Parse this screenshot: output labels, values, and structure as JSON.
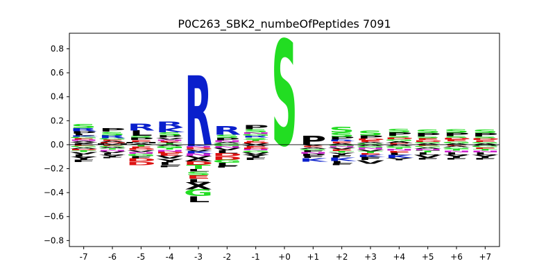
{
  "chart_data": {
    "type": "sequence-logo",
    "title": "P0C263_SBK2_numbeOfPeptides 7091",
    "xlabel": "",
    "ylabel": "",
    "ylim": [
      -0.85,
      0.93
    ],
    "yticks": [
      -0.8,
      -0.6,
      -0.4,
      -0.2,
      0.0,
      0.2,
      0.4,
      0.6,
      0.8
    ],
    "ytick_labels": [
      "−0.8",
      "−0.6",
      "−0.4",
      "−0.2",
      "0.0",
      "0.2",
      "0.4",
      "0.6",
      "0.8"
    ],
    "positions": [
      "-7",
      "-6",
      "-5",
      "-4",
      "-3",
      "-2",
      "-1",
      "+0",
      "+1",
      "+2",
      "+3",
      "+4",
      "+5",
      "+6",
      "+7"
    ],
    "grid": false,
    "colors": {
      "S": "#22dd22",
      "G": "#22dd22",
      "T": "#22dd22",
      "R": "#0a1fcc",
      "K": "#0a1fcc",
      "H": "#0a1fcc",
      "D": "#dd1111",
      "E": "#dd1111",
      "N": "#cc22cc",
      "Q": "#cc22cc",
      "P": "#000000",
      "L": "#000000",
      "V": "#000000",
      "I": "#000000",
      "M": "#000000",
      "A": "#000000",
      "F": "#000000",
      "W": "#000000",
      "Y": "#000000",
      "C": "#000000",
      "X": "#000000"
    },
    "stacks": [
      {
        "pos": "-7",
        "up": [
          [
            "F",
            0.01
          ],
          [
            "V",
            0.01
          ],
          [
            "A",
            0.012
          ],
          [
            "N",
            0.01
          ],
          [
            "E",
            0.012
          ],
          [
            "G",
            0.012
          ],
          [
            "K",
            0.012
          ],
          [
            "L",
            0.015
          ],
          [
            "P",
            0.02
          ],
          [
            "R",
            0.025
          ],
          [
            "S",
            0.035
          ]
        ],
        "down": [
          [
            "E",
            0.01
          ],
          [
            "G",
            0.012
          ],
          [
            "A",
            0.012
          ],
          [
            "D",
            0.012
          ],
          [
            "T",
            0.015
          ],
          [
            "V",
            0.02
          ],
          [
            "L",
            0.02
          ],
          [
            "Y",
            0.025
          ],
          [
            "F",
            0.02
          ]
        ]
      },
      {
        "pos": "-6",
        "up": [
          [
            "M",
            0.01
          ],
          [
            "D",
            0.01
          ],
          [
            "A",
            0.01
          ],
          [
            "E",
            0.012
          ],
          [
            "G",
            0.012
          ],
          [
            "R",
            0.025
          ],
          [
            "S",
            0.03
          ],
          [
            "P",
            0.03
          ]
        ],
        "down": [
          [
            "E",
            0.01
          ],
          [
            "G",
            0.01
          ],
          [
            "A",
            0.01
          ],
          [
            "T",
            0.012
          ],
          [
            "N",
            0.012
          ],
          [
            "V",
            0.015
          ],
          [
            "L",
            0.015
          ],
          [
            "Y",
            0.02
          ],
          [
            "F",
            0.01
          ]
        ]
      },
      {
        "pos": "-5",
        "up": [
          [
            "A",
            0.012
          ],
          [
            "M",
            0.012
          ],
          [
            "E",
            0.015
          ],
          [
            "P",
            0.02
          ],
          [
            "S",
            0.015
          ],
          [
            "L",
            0.045
          ],
          [
            "R",
            0.055
          ]
        ],
        "down": [
          [
            "T",
            0.015
          ],
          [
            "E",
            0.015
          ],
          [
            "D",
            0.015
          ],
          [
            "V",
            0.015
          ],
          [
            "N",
            0.015
          ],
          [
            "G",
            0.02
          ],
          [
            "F",
            0.02
          ],
          [
            "D",
            0.025
          ],
          [
            "D",
            0.03
          ]
        ]
      },
      {
        "pos": "-4",
        "up": [
          [
            "T",
            0.01
          ],
          [
            "Y",
            0.01
          ],
          [
            "E",
            0.012
          ],
          [
            "N",
            0.012
          ],
          [
            "V",
            0.015
          ],
          [
            "P",
            0.02
          ],
          [
            "S",
            0.025
          ],
          [
            "K",
            0.04
          ],
          [
            "R",
            0.05
          ]
        ],
        "down": [
          [
            "A",
            0.012
          ],
          [
            "G",
            0.015
          ],
          [
            "T",
            0.015
          ],
          [
            "N",
            0.015
          ],
          [
            "D",
            0.015
          ],
          [
            "E",
            0.02
          ],
          [
            "V",
            0.025
          ],
          [
            "Y",
            0.03
          ],
          [
            "L",
            0.025
          ],
          [
            "F",
            0.015
          ]
        ]
      },
      {
        "pos": "-3",
        "up": [
          [
            "R",
            0.58
          ]
        ],
        "down": [
          [
            "K",
            0.012
          ],
          [
            "N",
            0.012
          ],
          [
            "D",
            0.015
          ],
          [
            "V",
            0.015
          ],
          [
            "K",
            0.02
          ],
          [
            "N",
            0.02
          ],
          [
            "V",
            0.02
          ],
          [
            "A",
            0.025
          ],
          [
            "D",
            0.03
          ],
          [
            "T",
            0.035
          ],
          [
            "L",
            0.02
          ],
          [
            "S",
            0.03
          ],
          [
            "E",
            0.03
          ],
          [
            "L",
            0.03
          ],
          [
            "X",
            0.06
          ],
          [
            "G",
            0.055
          ],
          [
            "L",
            0.05
          ]
        ]
      },
      {
        "pos": "-2",
        "up": [
          [
            "G",
            0.01
          ],
          [
            "A",
            0.012
          ],
          [
            "N",
            0.015
          ],
          [
            "P",
            0.02
          ],
          [
            "S",
            0.025
          ],
          [
            "R",
            0.07
          ]
        ],
        "down": [
          [
            "G",
            0.012
          ],
          [
            "N",
            0.015
          ],
          [
            "V",
            0.02
          ],
          [
            "L",
            0.025
          ],
          [
            "D",
            0.025
          ],
          [
            "D",
            0.03
          ],
          [
            "G",
            0.025
          ],
          [
            "L",
            0.025
          ],
          [
            "F",
            0.015
          ]
        ]
      },
      {
        "pos": "-1",
        "up": [
          [
            "V",
            0.01
          ],
          [
            "D",
            0.01
          ],
          [
            "E",
            0.012
          ],
          [
            "T",
            0.012
          ],
          [
            "S",
            0.015
          ],
          [
            "R",
            0.015
          ],
          [
            "G",
            0.015
          ],
          [
            "N",
            0.015
          ],
          [
            "S",
            0.025
          ],
          [
            "P",
            0.035
          ]
        ],
        "down": [
          [
            "A",
            0.012
          ],
          [
            "E",
            0.012
          ],
          [
            "D",
            0.012
          ],
          [
            "N",
            0.012
          ],
          [
            "G",
            0.015
          ],
          [
            "V",
            0.02
          ],
          [
            "Y",
            0.025
          ],
          [
            "F",
            0.02
          ]
        ]
      },
      {
        "pos": "+0",
        "up": [
          [
            "S",
            0.88
          ]
        ],
        "down": []
      },
      {
        "pos": "+1",
        "up": [
          [
            "P",
            0.075
          ]
        ],
        "down": [
          [
            "V",
            0.01
          ],
          [
            "E",
            0.012
          ],
          [
            "A",
            0.012
          ],
          [
            "G",
            0.012
          ],
          [
            "F",
            0.015
          ],
          [
            "N",
            0.015
          ],
          [
            "P",
            0.02
          ],
          [
            "F",
            0.015
          ],
          [
            "K",
            0.03
          ]
        ]
      },
      {
        "pos": "+2",
        "up": [
          [
            "A",
            0.012
          ],
          [
            "E",
            0.015
          ],
          [
            "R",
            0.015
          ],
          [
            "P",
            0.025
          ],
          [
            "S",
            0.035
          ],
          [
            "S",
            0.05
          ]
        ],
        "down": [
          [
            "G",
            0.01
          ],
          [
            "N",
            0.012
          ],
          [
            "V",
            0.015
          ],
          [
            "E",
            0.015
          ],
          [
            "T",
            0.015
          ],
          [
            "Y",
            0.02
          ],
          [
            "F",
            0.02
          ],
          [
            "K",
            0.03
          ],
          [
            "L",
            0.02
          ],
          [
            "F",
            0.015
          ]
        ]
      },
      {
        "pos": "+3",
        "up": [
          [
            "G",
            0.01
          ],
          [
            "A",
            0.012
          ],
          [
            "E",
            0.015
          ],
          [
            "D",
            0.015
          ],
          [
            "P",
            0.025
          ],
          [
            "S",
            0.04
          ]
        ],
        "down": [
          [
            "A",
            0.012
          ],
          [
            "G",
            0.012
          ],
          [
            "N",
            0.015
          ],
          [
            "V",
            0.015
          ],
          [
            "T",
            0.015
          ],
          [
            "E",
            0.015
          ],
          [
            "K",
            0.02
          ],
          [
            "F",
            0.025
          ],
          [
            "V",
            0.03
          ]
        ]
      },
      {
        "pos": "+4",
        "up": [
          [
            "E",
            0.015
          ],
          [
            "A",
            0.015
          ],
          [
            "G",
            0.015
          ],
          [
            "D",
            0.015
          ],
          [
            "S",
            0.015
          ],
          [
            "P",
            0.03
          ],
          [
            "S",
            0.03
          ]
        ],
        "down": [
          [
            "A",
            0.012
          ],
          [
            "G",
            0.012
          ],
          [
            "T",
            0.012
          ],
          [
            "N",
            0.015
          ],
          [
            "E",
            0.015
          ],
          [
            "L",
            0.02
          ],
          [
            "K",
            0.025
          ],
          [
            "Y",
            0.02
          ]
        ]
      },
      {
        "pos": "+5",
        "up": [
          [
            "A",
            0.012
          ],
          [
            "G",
            0.012
          ],
          [
            "D",
            0.015
          ],
          [
            "E",
            0.015
          ],
          [
            "S",
            0.015
          ],
          [
            "P",
            0.03
          ],
          [
            "S",
            0.03
          ]
        ],
        "down": [
          [
            "E",
            0.01
          ],
          [
            "G",
            0.012
          ],
          [
            "A",
            0.012
          ],
          [
            "N",
            0.015
          ],
          [
            "T",
            0.015
          ],
          [
            "L",
            0.02
          ],
          [
            "V",
            0.025
          ],
          [
            "F",
            0.015
          ]
        ]
      },
      {
        "pos": "+6",
        "up": [
          [
            "A",
            0.012
          ],
          [
            "G",
            0.015
          ],
          [
            "E",
            0.015
          ],
          [
            "D",
            0.015
          ],
          [
            "S",
            0.015
          ],
          [
            "P",
            0.03
          ],
          [
            "S",
            0.03
          ]
        ],
        "down": [
          [
            "E",
            0.01
          ],
          [
            "A",
            0.012
          ],
          [
            "G",
            0.012
          ],
          [
            "T",
            0.015
          ],
          [
            "N",
            0.015
          ],
          [
            "L",
            0.02
          ],
          [
            "Y",
            0.025
          ],
          [
            "F",
            0.015
          ]
        ]
      },
      {
        "pos": "+7",
        "up": [
          [
            "A",
            0.012
          ],
          [
            "G",
            0.012
          ],
          [
            "E",
            0.015
          ],
          [
            "D",
            0.015
          ],
          [
            "S",
            0.015
          ],
          [
            "P",
            0.03
          ],
          [
            "S",
            0.03
          ]
        ],
        "down": [
          [
            "A",
            0.01
          ],
          [
            "G",
            0.012
          ],
          [
            "E",
            0.012
          ],
          [
            "T",
            0.015
          ],
          [
            "N",
            0.015
          ],
          [
            "L",
            0.02
          ],
          [
            "Y",
            0.025
          ],
          [
            "F",
            0.015
          ]
        ]
      }
    ]
  }
}
